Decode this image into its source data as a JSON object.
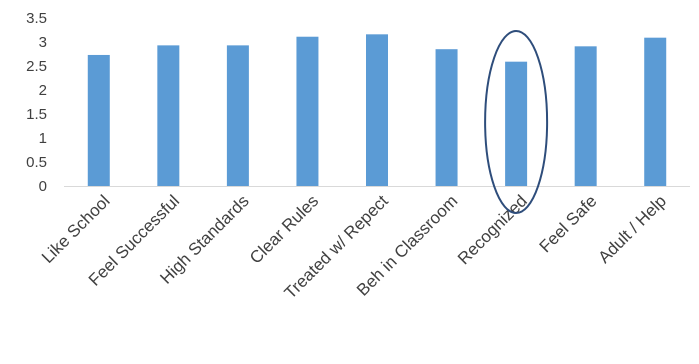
{
  "chart_data": {
    "type": "bar",
    "title": "",
    "xlabel": "",
    "ylabel": "",
    "categories": [
      "Like School",
      "Feel Successful",
      "High Standards",
      "Clear Rules",
      "Treated w/ Repect",
      "Beh in Classroom",
      "Recognized",
      "Feel Safe",
      "Adult / Help"
    ],
    "values": [
      2.73,
      2.93,
      2.93,
      3.11,
      3.16,
      2.85,
      2.59,
      2.91,
      3.09
    ],
    "ylim": [
      0,
      3.5
    ],
    "yticks": [
      "0",
      "0.5",
      "1",
      "1.5",
      "2",
      "2.5",
      "3",
      "3.5"
    ],
    "grid": false,
    "legend": "none",
    "bar_color": "#5b9bd5",
    "highlight": {
      "category": "Recognized",
      "shape": "ellipse",
      "color": "#2e4d7b"
    }
  }
}
